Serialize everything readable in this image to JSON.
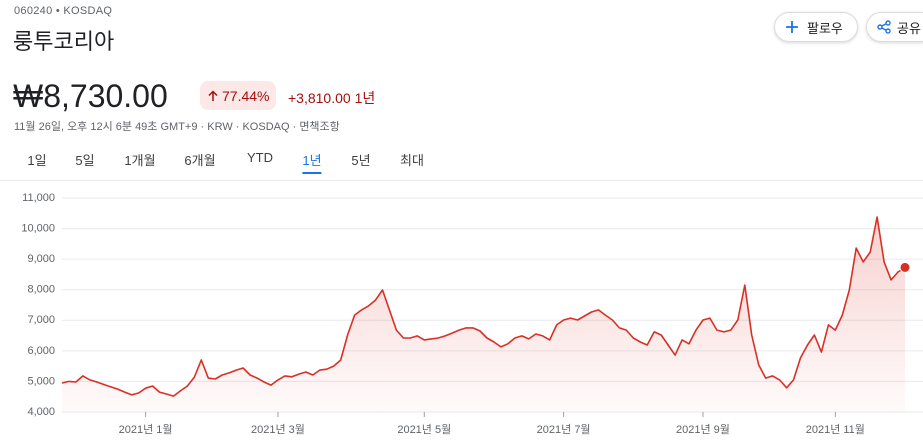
{
  "header": {
    "ticker": "060240 • KOSDAQ",
    "name": "룽투코리아",
    "follow": "팔로우",
    "share": "공유",
    "price": "₩8,730.00",
    "change_pct": "77.44%",
    "change_abs": "+3,810.00",
    "period": "1년",
    "timestamp": "11월 26일, 오후 12시 6분 49초 GMT+9 · KRW · KOSDAQ · 면책조항"
  },
  "tabs": [
    "1일",
    "5일",
    "1개월",
    "6개월",
    "YTD",
    "1년",
    "5년",
    "최대"
  ],
  "selected_tab": 5,
  "chart_data": {
    "type": "line",
    "categories": [
      null,
      null,
      null,
      null,
      null,
      null,
      null,
      null,
      null,
      null,
      null,
      null,
      "2021년 1월",
      null,
      null,
      null,
      null,
      null,
      null,
      null,
      null,
      null,
      null,
      null,
      null,
      null,
      null,
      null,
      null,
      null,
      null,
      "2021년 3월",
      null,
      null,
      null,
      null,
      null,
      null,
      null,
      null,
      null,
      null,
      null,
      null,
      null,
      null,
      null,
      null,
      null,
      null,
      null,
      null,
      "2021년 5월",
      null,
      null,
      null,
      null,
      null,
      null,
      null,
      null,
      null,
      null,
      null,
      null,
      null,
      null,
      null,
      null,
      null,
      null,
      null,
      "2021년 7월",
      null,
      null,
      null,
      null,
      null,
      null,
      null,
      null,
      null,
      null,
      null,
      null,
      null,
      null,
      null,
      null,
      null,
      null,
      null,
      "2021년 9월",
      null,
      null,
      null,
      null,
      null,
      null,
      null,
      null,
      null,
      null,
      null,
      null,
      null,
      null,
      null,
      null,
      null,
      null,
      "2021년 11월",
      null,
      null,
      null,
      null,
      null,
      null,
      null,
      null,
      null,
      null
    ],
    "series": [
      {
        "name": "룽투코리아",
        "color": "#d93025",
        "values": [
          4950,
          5000,
          4980,
          5180,
          5050,
          4980,
          4900,
          4820,
          4750,
          4650,
          4560,
          4620,
          4780,
          4850,
          4650,
          4590,
          4520,
          4690,
          4850,
          5140,
          5700,
          5110,
          5080,
          5210,
          5280,
          5370,
          5440,
          5210,
          5110,
          4980,
          4880,
          5050,
          5180,
          5150,
          5240,
          5310,
          5210,
          5370,
          5400,
          5500,
          5700,
          6520,
          7170,
          7340,
          7470,
          7660,
          7990,
          7340,
          6680,
          6420,
          6420,
          6490,
          6360,
          6390,
          6420,
          6490,
          6580,
          6680,
          6750,
          6750,
          6650,
          6420,
          6290,
          6130,
          6230,
          6420,
          6490,
          6390,
          6550,
          6490,
          6360,
          6850,
          7010,
          7070,
          7010,
          7140,
          7270,
          7340,
          7170,
          7010,
          6750,
          6680,
          6420,
          6290,
          6190,
          6620,
          6520,
          6190,
          5860,
          6360,
          6230,
          6680,
          7010,
          7070,
          6680,
          6620,
          6680,
          7010,
          8150,
          6520,
          5540,
          5110,
          5180,
          5050,
          4790,
          5050,
          5770,
          6190,
          6520,
          5960,
          6850,
          6680,
          7170,
          7990,
          9360,
          8910,
          9230,
          10380,
          8910,
          8320,
          8580,
          8730
        ]
      }
    ],
    "ylim": [
      4000,
      11000
    ],
    "yticks": [
      {
        "value": 4000,
        "label": "4,000"
      },
      {
        "value": 5000,
        "label": "5,000"
      },
      {
        "value": 6000,
        "label": "6,000"
      },
      {
        "value": 7000,
        "label": "7,000"
      },
      {
        "value": 8000,
        "label": "8,000"
      },
      {
        "value": 9000,
        "label": "9,000"
      },
      {
        "value": 10000,
        "label": "10,000"
      },
      {
        "value": 11000,
        "label": "11,000"
      }
    ],
    "grid": true
  }
}
